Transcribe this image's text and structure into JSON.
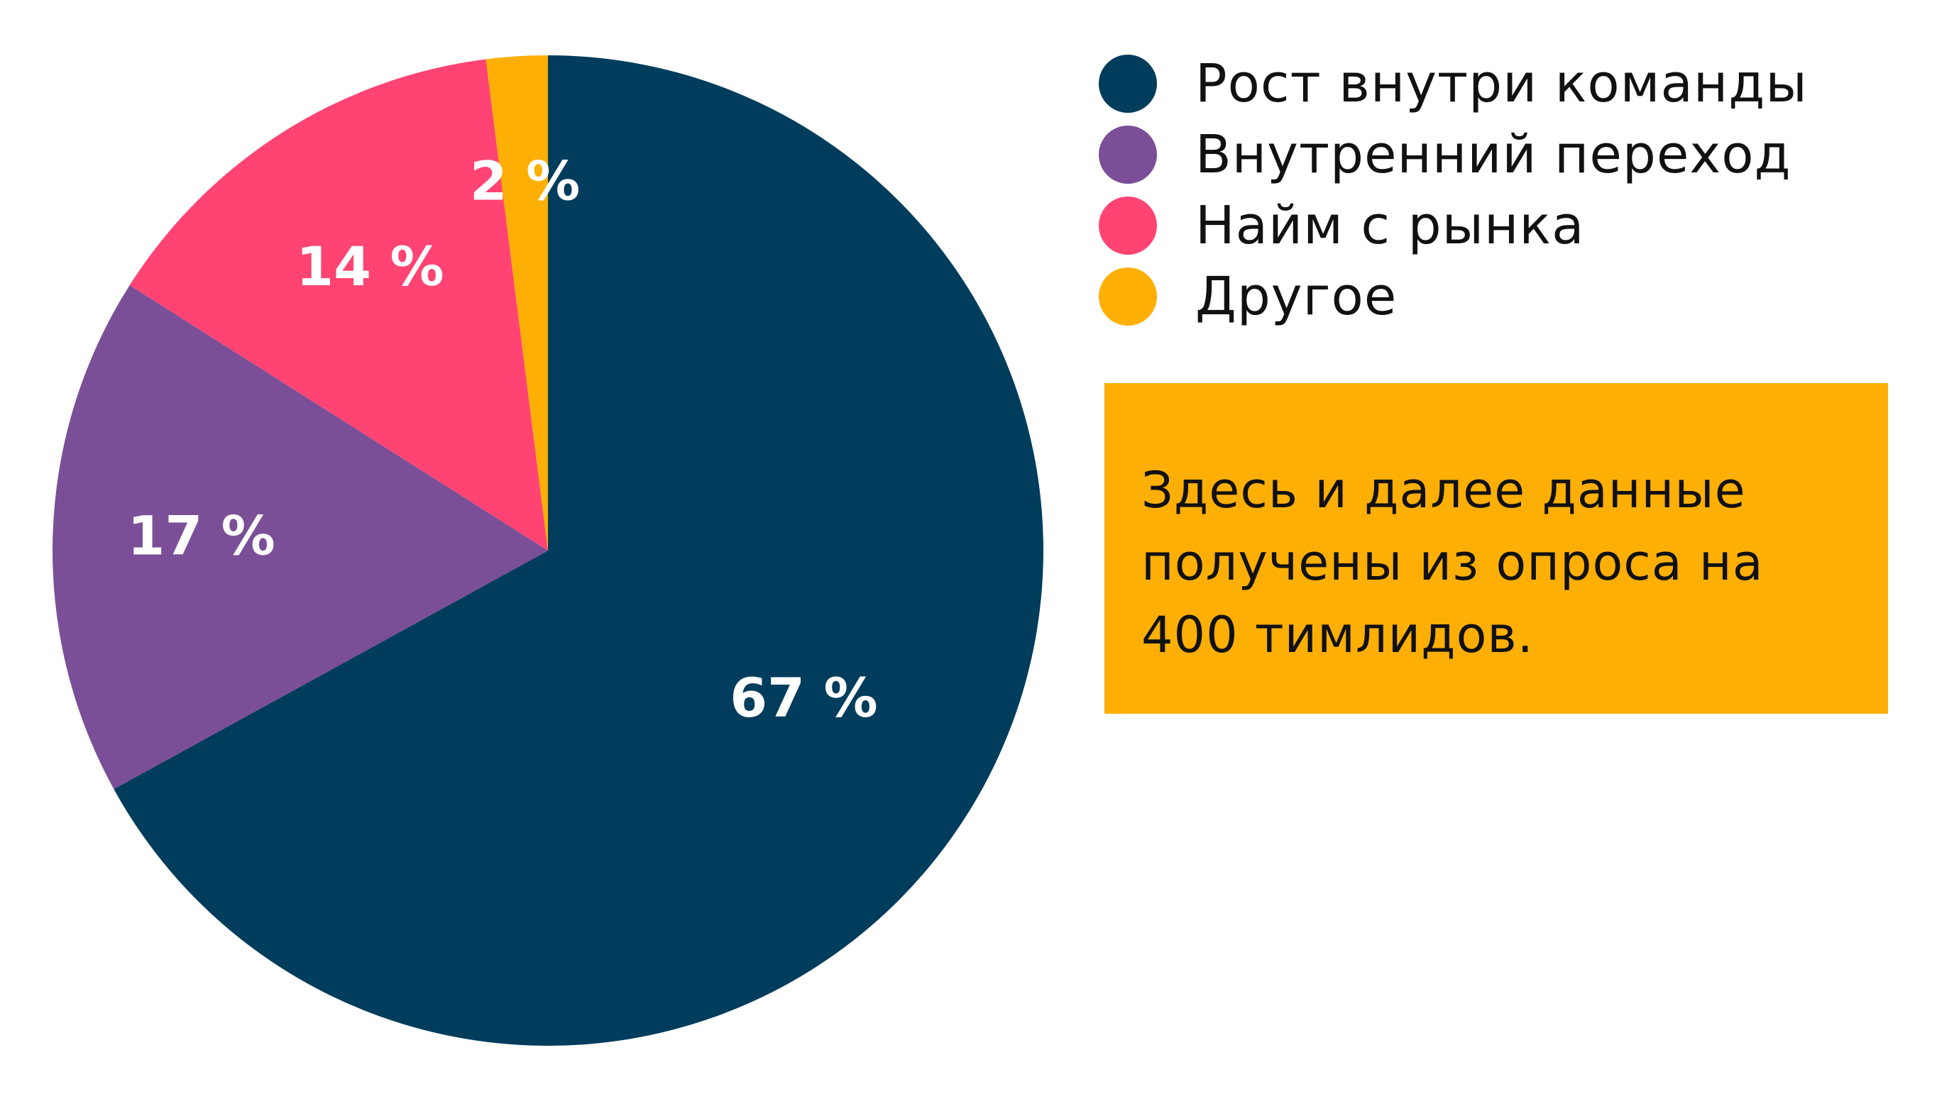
{
  "chart_data": {
    "type": "pie",
    "title": "",
    "categories": [
      "Рост внутри команды",
      "Внутренний переход",
      "Найм с рынка",
      "Другое"
    ],
    "values": [
      67,
      17,
      14,
      2
    ],
    "labels": [
      "67 %",
      "17 %",
      "14 %",
      "2 %"
    ],
    "colors": [
      "#003c5c",
      "#7b4f97",
      "#ff4473",
      "#fdaf06"
    ],
    "start": "12 o'clock",
    "direction": "clockwise",
    "legend_position": "top-right"
  },
  "legend": {
    "items": [
      {
        "label": "Рост внутри команды",
        "color": "#003c5c"
      },
      {
        "label": "Внутренний переход",
        "color": "#7b4f97"
      },
      {
        "label": "Найм с рынка",
        "color": "#ff4473"
      },
      {
        "label": "Другое",
        "color": "#fdaf06"
      }
    ]
  },
  "note": {
    "text": "Здесь и далее данные\nполучены из опроса на\n400 тимлидов.",
    "background": "#fdaf06"
  }
}
